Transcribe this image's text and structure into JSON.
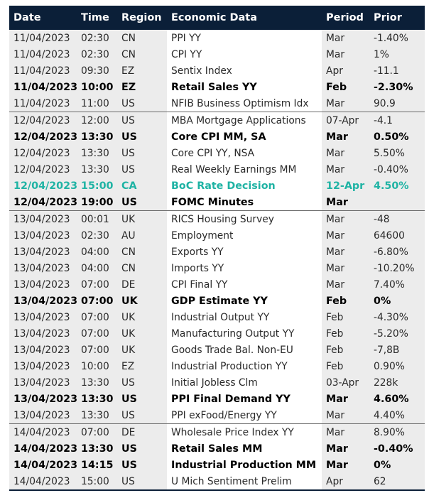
{
  "headers": [
    "Date",
    "Time",
    "Region",
    "Economic Data",
    "Period",
    "Prior"
  ],
  "rows": [
    {
      "date": "11/04/2023",
      "time": "02:30",
      "region": "CN",
      "data": "PPI YY",
      "period": "Mar",
      "prior": "-1.40%",
      "style": "normal",
      "group_start": false
    },
    {
      "date": "11/04/2023",
      "time": "02:30",
      "region": "CN",
      "data": "CPI YY",
      "period": "Mar",
      "prior": "1%",
      "style": "normal",
      "group_start": false
    },
    {
      "date": "11/04/2023",
      "time": "09:30",
      "region": "EZ",
      "data": "Sentix Index",
      "period": "Apr",
      "prior": "-11.1",
      "style": "normal",
      "group_start": false
    },
    {
      "date": "11/04/2023",
      "time": "10:00",
      "region": "EZ",
      "data": "Retail Sales YY",
      "period": "Feb",
      "prior": "-2.30%",
      "style": "bold",
      "group_start": false
    },
    {
      "date": "11/04/2023",
      "time": "11:00",
      "region": "US",
      "data": "NFIB Business Optimism Idx",
      "period": "Mar",
      "prior": "90.9",
      "style": "normal",
      "group_start": false
    },
    {
      "date": "12/04/2023",
      "time": "12:00",
      "region": "US",
      "data": "MBA Mortgage Applications",
      "period": "07-Apr",
      "prior": "-4.1",
      "style": "normal",
      "group_start": true
    },
    {
      "date": "12/04/2023",
      "time": "13:30",
      "region": "US",
      "data": "Core CPI MM, SA",
      "period": "Mar",
      "prior": "0.50%",
      "style": "bold",
      "group_start": false
    },
    {
      "date": "12/04/2023",
      "time": "13:30",
      "region": "US",
      "data": "Core CPI YY, NSA",
      "period": "Mar",
      "prior": "5.50%",
      "style": "normal",
      "group_start": false
    },
    {
      "date": "12/04/2023",
      "time": "13:30",
      "region": "US",
      "data": "Real Weekly Earnings MM",
      "period": "Mar",
      "prior": "-0.40%",
      "style": "normal",
      "group_start": false
    },
    {
      "date": "12/04/2023",
      "time": "15:00",
      "region": "CA",
      "data": "BoC Rate Decision",
      "period": "12-Apr",
      "prior": "4.50%",
      "style": "highlight",
      "group_start": false
    },
    {
      "date": "12/04/2023",
      "time": "19:00",
      "region": "US",
      "data": "FOMC Minutes",
      "period": "Mar",
      "prior": "",
      "style": "bold",
      "group_start": false
    },
    {
      "date": "13/04/2023",
      "time": "00:01",
      "region": "UK",
      "data": "RICS Housing Survey",
      "period": "Mar",
      "prior": "-48",
      "style": "normal",
      "group_start": true
    },
    {
      "date": "13/04/2023",
      "time": "02:30",
      "region": "AU",
      "data": "Employment",
      "period": "Mar",
      "prior": "64600",
      "style": "normal",
      "group_start": false
    },
    {
      "date": "13/04/2023",
      "time": "04:00",
      "region": "CN",
      "data": "Exports YY",
      "period": "Mar",
      "prior": "-6.80%",
      "style": "normal",
      "group_start": false
    },
    {
      "date": "13/04/2023",
      "time": "04:00",
      "region": "CN",
      "data": "Imports YY",
      "period": "Mar",
      "prior": "-10.20%",
      "style": "normal",
      "group_start": false
    },
    {
      "date": "13/04/2023",
      "time": "07:00",
      "region": "DE",
      "data": "CPI Final YY",
      "period": "Mar",
      "prior": "7.40%",
      "style": "normal",
      "group_start": false
    },
    {
      "date": "13/04/2023",
      "time": "07:00",
      "region": "UK",
      "data": "GDP Estimate YY",
      "period": "Feb",
      "prior": "0%",
      "style": "bold",
      "group_start": false
    },
    {
      "date": "13/04/2023",
      "time": "07:00",
      "region": "UK",
      "data": "Industrial Output YY",
      "period": "Feb",
      "prior": "-4.30%",
      "style": "normal",
      "group_start": false
    },
    {
      "date": "13/04/2023",
      "time": "07:00",
      "region": "UK",
      "data": "Manufacturing Output YY",
      "period": "Feb",
      "prior": "-5.20%",
      "style": "normal",
      "group_start": false
    },
    {
      "date": "13/04/2023",
      "time": "07:00",
      "region": "UK",
      "data": "Goods Trade Bal. Non-EU",
      "period": "Feb",
      "prior": "-7,8B",
      "style": "normal",
      "group_start": false
    },
    {
      "date": "13/04/2023",
      "time": "10:00",
      "region": "EZ",
      "data": "Industrial Production YY",
      "period": "Feb",
      "prior": "0.90%",
      "style": "normal",
      "group_start": false
    },
    {
      "date": "13/04/2023",
      "time": "13:30",
      "region": "US",
      "data": "Initial Jobless Clm",
      "period": "03-Apr",
      "prior": "228k",
      "style": "normal",
      "group_start": false
    },
    {
      "date": "13/04/2023",
      "time": "13:30",
      "region": "US",
      "data": "PPI Final Demand YY",
      "period": "Mar",
      "prior": "4.60%",
      "style": "bold",
      "group_start": false
    },
    {
      "date": "13/04/2023",
      "time": "13:30",
      "region": "US",
      "data": "PPI exFood/Energy YY",
      "period": "Mar",
      "prior": "4.40%",
      "style": "normal",
      "group_start": false
    },
    {
      "date": "14/04/2023",
      "time": "07:00",
      "region": "DE",
      "data": "Wholesale Price Index YY",
      "period": "Mar",
      "prior": "8.90%",
      "style": "normal",
      "group_start": true
    },
    {
      "date": "14/04/2023",
      "time": "13:30",
      "region": "US",
      "data": "Retail Sales MM",
      "period": "Mar",
      "prior": "-0.40%",
      "style": "bold",
      "group_start": false
    },
    {
      "date": "14/04/2023",
      "time": "14:15",
      "region": "US",
      "data": "Industrial Production MM",
      "period": "Mar",
      "prior": "0%",
      "style": "bold",
      "group_start": false
    },
    {
      "date": "14/04/2023",
      "time": "15:00",
      "region": "US",
      "data": "U Mich Sentiment Prelim",
      "period": "Apr",
      "prior": "62",
      "style": "normal",
      "group_start": false
    }
  ],
  "colors": {
    "header_bg": "#0b1f38",
    "header_text": "#ffffff",
    "shade": "#ececec",
    "highlight": "#1fb3a4"
  }
}
